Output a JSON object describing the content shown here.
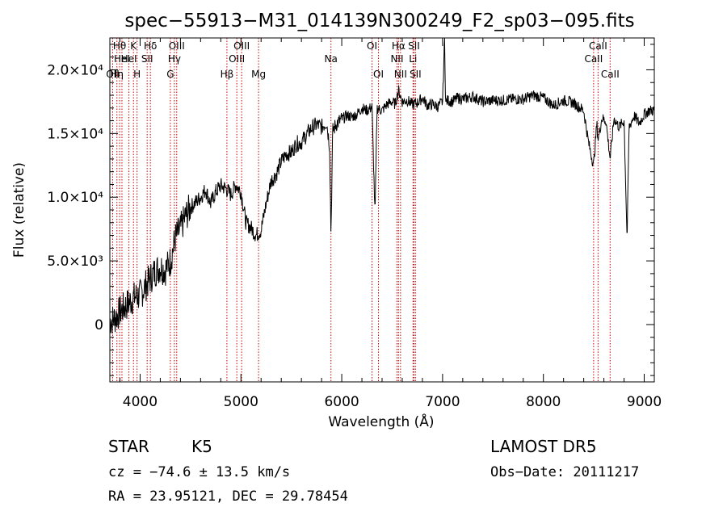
{
  "chart_data": {
    "type": "line",
    "title": "spec−55913−M31_014139N300249_F2_sp03−095.fits",
    "xlabel": "Wavelength (Å)",
    "ylabel": "Flux (relative)",
    "xlim": [
      3700,
      9100
    ],
    "ylim": [
      -4500,
      22500
    ],
    "xticks": [
      {
        "value": 4000,
        "label": "4000"
      },
      {
        "value": 5000,
        "label": "5000"
      },
      {
        "value": 6000,
        "label": "6000"
      },
      {
        "value": 7000,
        "label": "7000"
      },
      {
        "value": 8000,
        "label": "8000"
      },
      {
        "value": 9000,
        "label": "9000"
      }
    ],
    "yticks": [
      {
        "value": 0,
        "label": "0"
      },
      {
        "value": 5000,
        "label": "5.0×10³"
      },
      {
        "value": 10000,
        "label": "1.0×10⁴"
      },
      {
        "value": 15000,
        "label": "1.5×10⁴"
      },
      {
        "value": 20000,
        "label": "2.0×10⁴"
      }
    ],
    "grid": false,
    "series": [
      {
        "x": [
          3700,
          3750,
          3800,
          3850,
          3900,
          3950,
          4000,
          4050,
          4100,
          4150,
          4200,
          4250,
          4300,
          4350,
          4400,
          4450,
          4500,
          4550,
          4600,
          4650,
          4700,
          4750,
          4800,
          4850,
          4900,
          4950,
          5000,
          5050,
          5100,
          5150,
          5200,
          5250,
          5300,
          5350,
          5400,
          5450,
          5500,
          5550,
          5600,
          5650,
          5700,
          5750,
          5800,
          5850,
          5880,
          5893,
          5910,
          5950,
          6000,
          6050,
          6100,
          6150,
          6200,
          6250,
          6300,
          6330,
          6350,
          6400,
          6450,
          6500,
          6530,
          6563,
          6600,
          6650,
          6700,
          6750,
          6800,
          6850,
          6900,
          6950,
          7000,
          7020,
          7030,
          7050,
          7100,
          7150,
          7200,
          7300,
          7400,
          7500,
          7600,
          7700,
          7800,
          7900,
          8000,
          8100,
          8200,
          8300,
          8400,
          8450,
          8498,
          8530,
          8542,
          8580,
          8620,
          8662,
          8700,
          8750,
          8800,
          8830,
          8850,
          8900,
          8950,
          9000,
          9050
        ],
        "y": [
          300,
          500,
          1000,
          1400,
          1800,
          2200,
          2300,
          3000,
          3600,
          4200,
          4500,
          4300,
          5000,
          6800,
          7500,
          8500,
          9200,
          9600,
          10000,
          10600,
          9500,
          10400,
          10900,
          10700,
          10200,
          11000,
          10400,
          8000,
          7600,
          7000,
          7400,
          9500,
          11300,
          11800,
          12800,
          13400,
          13500,
          14200,
          14300,
          14900,
          15400,
          15700,
          15500,
          15900,
          14000,
          7000,
          15200,
          15800,
          16100,
          16400,
          16300,
          16500,
          17000,
          16800,
          17100,
          8500,
          17000,
          16800,
          17300,
          17500,
          17300,
          18400,
          17500,
          17600,
          17300,
          17400,
          17800,
          17200,
          17300,
          17100,
          17500,
          22500,
          17400,
          17600,
          17500,
          17800,
          17700,
          17900,
          17500,
          17600,
          17600,
          17700,
          17700,
          18000,
          17800,
          17200,
          17600,
          17400,
          16800,
          14200,
          12500,
          15800,
          14500,
          16200,
          16000,
          13000,
          16200,
          15500,
          16000,
          6500,
          15500,
          16400,
          15800,
          16500,
          16800
        ]
      }
    ],
    "lines": [
      {
        "wavelength": 3728,
        "label": "OII",
        "row": 3
      },
      {
        "wavelength": 3770,
        "label": "Hη",
        "row": 3
      },
      {
        "wavelength": 3797,
        "label": "Hθ",
        "row": 1
      },
      {
        "wavelength": 3820,
        "label": "HeI",
        "row": 2
      },
      {
        "wavelength": 3889,
        "label": "HeI",
        "row": 2
      },
      {
        "wavelength": 3934,
        "label": "K",
        "row": 1
      },
      {
        "wavelength": 3970,
        "label": "H",
        "row": 3
      },
      {
        "wavelength": 4070,
        "label": "SII",
        "row": 2
      },
      {
        "wavelength": 4102,
        "label": "Hδ",
        "row": 1
      },
      {
        "wavelength": 4300,
        "label": "G",
        "row": 3
      },
      {
        "wavelength": 4340,
        "label": "Hγ",
        "row": 2
      },
      {
        "wavelength": 4363,
        "label": "OIII",
        "row": 1
      },
      {
        "wavelength": 4861,
        "label": "Hβ",
        "row": 3
      },
      {
        "wavelength": 4959,
        "label": "OIII",
        "row": 2
      },
      {
        "wavelength": 5007,
        "label": "OIII",
        "row": 1
      },
      {
        "wavelength": 5175,
        "label": "Mg",
        "row": 3
      },
      {
        "wavelength": 5893,
        "label": "Na",
        "row": 2
      },
      {
        "wavelength": 6300,
        "label": "OI",
        "row": 1
      },
      {
        "wavelength": 6364,
        "label": "OI",
        "row": 3
      },
      {
        "wavelength": 6548,
        "label": "NII",
        "row": 2
      },
      {
        "wavelength": 6563,
        "label": "Hα",
        "row": 1
      },
      {
        "wavelength": 6583,
        "label": "NII",
        "row": 3
      },
      {
        "wavelength": 6707,
        "label": "Li",
        "row": 2
      },
      {
        "wavelength": 6716,
        "label": "SII",
        "row": 1
      },
      {
        "wavelength": 6731,
        "label": "SII",
        "row": 3
      },
      {
        "wavelength": 8498,
        "label": "CaII",
        "row": 2
      },
      {
        "wavelength": 8542,
        "label": "CaII",
        "row": 1
      },
      {
        "wavelength": 8662,
        "label": "CaII",
        "row": 3
      }
    ],
    "line_color": "#cc0000",
    "spectrum_color": "#000000"
  },
  "info": {
    "class_label": "STAR",
    "subclass": "K5",
    "survey": "LAMOST DR5",
    "cz": "cz = −74.6 ± 13.5 km/s",
    "obs_date": "Obs−Date: 20111217",
    "coords": "RA =  23.95121, DEC =  29.78454"
  }
}
